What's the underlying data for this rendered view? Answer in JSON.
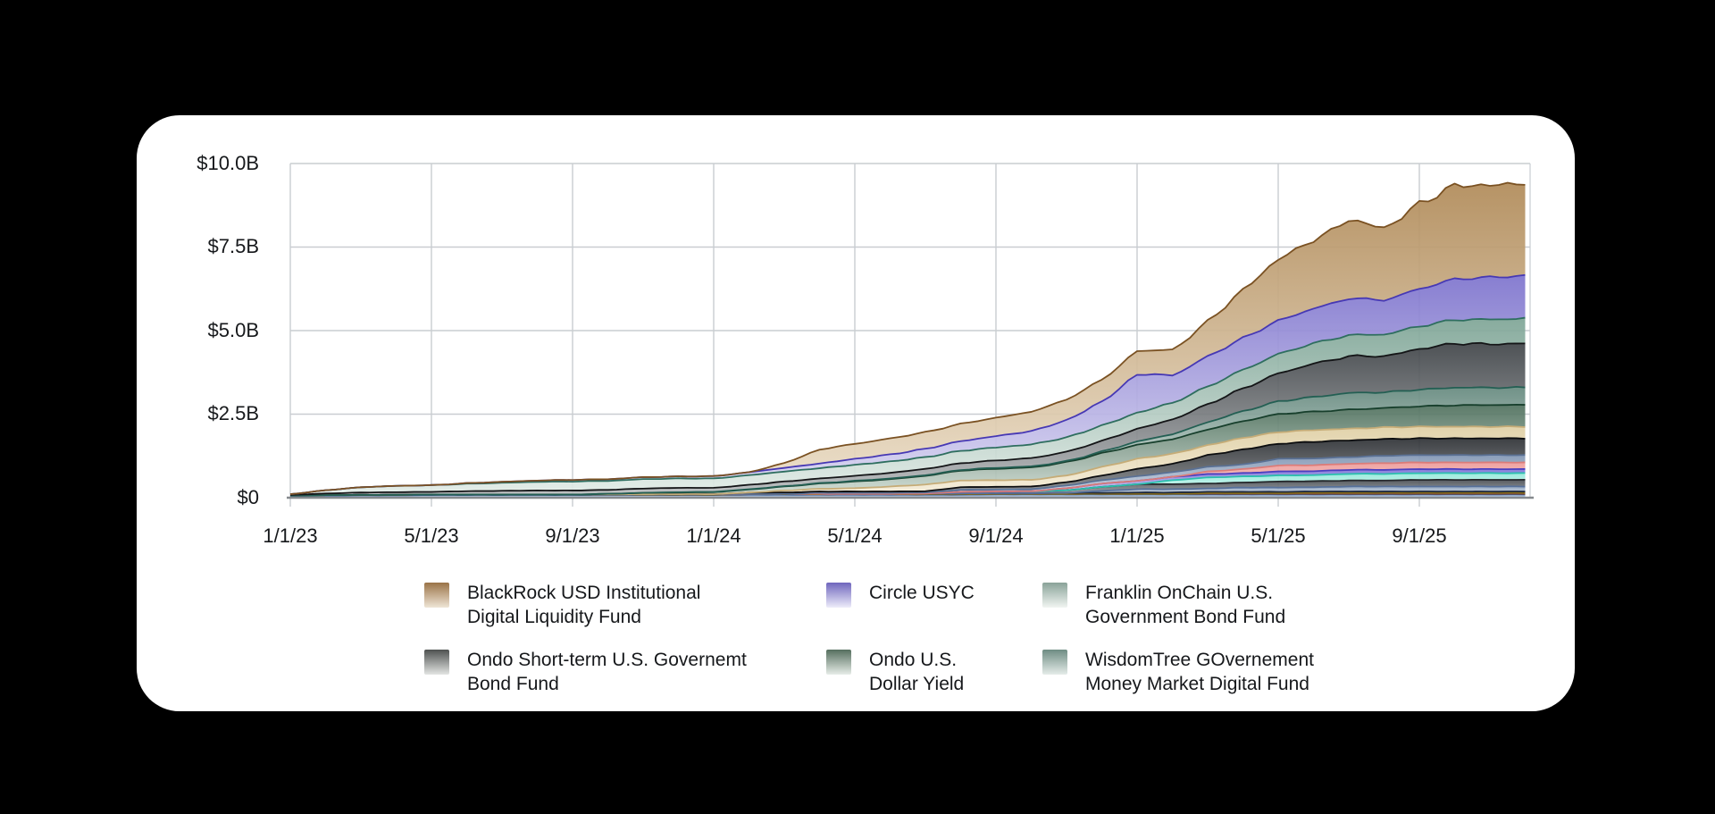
{
  "page": {
    "background": "#000000",
    "card_background": "#ffffff"
  },
  "chart_data": {
    "type": "area",
    "stacked": true,
    "title": "",
    "xlabel": "",
    "ylabel": "",
    "ylim": [
      0,
      10
    ],
    "grid": true,
    "y_ticks": [
      "$10.0B",
      "$7.5B",
      "$5.0B",
      "$2.5B",
      "$0"
    ],
    "y_tick_values": [
      10,
      7.5,
      5,
      2.5,
      0
    ],
    "x_ticks": [
      "1/1/23",
      "5/1/23",
      "9/1/23",
      "1/1/24",
      "5/1/24",
      "9/1/24",
      "1/1/25",
      "5/1/25",
      "9/1/25"
    ],
    "x_months_start": "2023-01",
    "x_months_count": 36,
    "unit": "$ billions",
    "series": [
      {
        "name": "unlabeled-blue-base",
        "stroke": "#3d5f91",
        "fill_top": "#7b9cc8",
        "fill_bottom": "#c5d5e8",
        "values": [
          0.05,
          0.06,
          0.07,
          0.07,
          0.08,
          0.08,
          0.08,
          0.08,
          0.08,
          0.08,
          0.08,
          0.08,
          0.08,
          0.09,
          0.09,
          0.09,
          0.09,
          0.09,
          0.09,
          0.09,
          0.1,
          0.1,
          0.1,
          0.1,
          0.1,
          0.1,
          0.1,
          0.1,
          0.1,
          0.1,
          0.1,
          0.1,
          0.1,
          0.1,
          0.1,
          0.1
        ]
      },
      {
        "name": "unlabeled-maroon",
        "stroke": "#6e4040",
        "fill_top": "#96625f",
        "fill_bottom": "#d8c0bd",
        "values": [
          0.015,
          0.015,
          0.015,
          0.015,
          0.015,
          0.015,
          0.015,
          0.015,
          0.015,
          0.015,
          0.015,
          0.015,
          0.015,
          0.015,
          0.015,
          0.015,
          0.015,
          0.015,
          0.015,
          0.015,
          0.015,
          0.015,
          0.015,
          0.015,
          0.015,
          0.015,
          0.015,
          0.015,
          0.015,
          0.015,
          0.015,
          0.015,
          0.015,
          0.015,
          0.015,
          0.015
        ]
      },
      {
        "name": "unlabeled-gold",
        "stroke": "#8a6d14",
        "fill_top": "#b08c2a",
        "fill_bottom": "#e6d49a",
        "values": [
          0,
          0,
          0,
          0,
          0,
          0,
          0,
          0,
          0,
          0,
          0,
          0,
          0,
          0,
          0,
          0,
          0,
          0,
          0,
          0,
          0,
          0,
          0,
          0,
          0,
          0,
          0.02,
          0.02,
          0.02,
          0.03,
          0.03,
          0.03,
          0.03,
          0.03,
          0.03,
          0.03
        ]
      },
      {
        "name": "unlabeled-navy",
        "stroke": "#1f2a3d",
        "fill_top": "#39485f",
        "fill_bottom": "#9aa5b5",
        "values": [
          0,
          0,
          0,
          0,
          0,
          0,
          0,
          0,
          0,
          0,
          0.01,
          0.01,
          0.01,
          0.01,
          0.01,
          0.01,
          0.01,
          0.01,
          0.02,
          0.02,
          0.02,
          0.02,
          0.03,
          0.03,
          0.04,
          0.04,
          0.04,
          0.04,
          0.04,
          0.04,
          0.04,
          0.04,
          0.04,
          0.04,
          0.04,
          0.04
        ]
      },
      {
        "name": "unlabeled-slate-blue",
        "stroke": "#56709a",
        "fill_top": "#8ba0bc",
        "fill_bottom": "#d4dce6",
        "values": [
          0,
          0,
          0,
          0,
          0,
          0,
          0,
          0,
          0,
          0,
          0,
          0,
          0,
          0,
          0,
          0,
          0,
          0,
          0,
          0,
          0,
          0,
          0,
          0.06,
          0.1,
          0.1,
          0.1,
          0.13,
          0.13,
          0.13,
          0.15,
          0.15,
          0.15,
          0.15,
          0.15,
          0.15
        ]
      },
      {
        "name": "unlabeled-charcoal",
        "stroke": "#25282c",
        "fill_top": "#474c52",
        "fill_bottom": "#a5a9ad",
        "values": [
          0,
          0,
          0,
          0,
          0,
          0,
          0,
          0,
          0,
          0,
          0,
          0,
          0,
          0,
          0,
          0,
          0,
          0,
          0,
          0.05,
          0.05,
          0.06,
          0.08,
          0.12,
          0.15,
          0.15,
          0.15,
          0.15,
          0.18,
          0.18,
          0.18,
          0.18,
          0.2,
          0.2,
          0.2,
          0.2
        ]
      },
      {
        "name": "unlabeled-mint",
        "stroke": "#2bbfae",
        "fill_top": "#93e9d9",
        "fill_bottom": "#e2faf6",
        "values": [
          0,
          0,
          0,
          0,
          0,
          0,
          0,
          0,
          0,
          0,
          0,
          0,
          0,
          0,
          0,
          0,
          0,
          0,
          0,
          0,
          0,
          0,
          0,
          0,
          0,
          0.12,
          0.18,
          0.18,
          0.18,
          0.18,
          0.2,
          0.2,
          0.2,
          0.2,
          0.2,
          0.2
        ]
      },
      {
        "name": "unlabeled-violet",
        "stroke": "#4a3ec0",
        "fill_top": "#7e72d8",
        "fill_bottom": "#d5d1f0",
        "values": [
          0,
          0,
          0,
          0,
          0,
          0,
          0,
          0,
          0,
          0,
          0,
          0,
          0,
          0,
          0,
          0,
          0,
          0,
          0,
          0,
          0,
          0,
          0.06,
          0.1,
          0.1,
          0.1,
          0.1,
          0.1,
          0.12,
          0.12,
          0.12,
          0.12,
          0.12,
          0.12,
          0.12,
          0.12
        ]
      },
      {
        "name": "unlabeled-salmon",
        "stroke": "#da7c79",
        "fill_top": "#ee9a98",
        "fill_bottom": "#f8d6d4",
        "values": [
          0,
          0,
          0,
          0,
          0,
          0,
          0,
          0,
          0,
          0,
          0,
          0,
          0,
          0,
          0,
          0,
          0,
          0,
          0,
          0,
          0,
          0,
          0,
          0,
          0,
          0,
          0.08,
          0.12,
          0.18,
          0.18,
          0.18,
          0.2,
          0.2,
          0.2,
          0.2,
          0.2
        ]
      },
      {
        "name": "unlabeled-blue-gray",
        "stroke": "#5a7195",
        "fill_top": "#8095b3",
        "fill_bottom": "#ccd6e3",
        "values": [
          0,
          0,
          0,
          0,
          0,
          0,
          0,
          0,
          0,
          0,
          0,
          0,
          0,
          0,
          0,
          0.03,
          0.03,
          0.03,
          0.03,
          0.06,
          0.06,
          0.06,
          0.08,
          0.1,
          0.14,
          0.14,
          0.14,
          0.14,
          0.2,
          0.2,
          0.2,
          0.22,
          0.22,
          0.22,
          0.22,
          0.22
        ]
      },
      {
        "name": "unlabeled-black",
        "stroke": "#0c0d0f",
        "fill_top": "#2c2f33",
        "fill_bottom": "#8d9093",
        "values": [
          0,
          0,
          0,
          0,
          0,
          0,
          0,
          0,
          0,
          0,
          0,
          0,
          0,
          0.04,
          0.04,
          0.04,
          0.04,
          0.04,
          0.04,
          0.08,
          0.08,
          0.08,
          0.1,
          0.14,
          0.22,
          0.25,
          0.35,
          0.45,
          0.45,
          0.5,
          0.5,
          0.5,
          0.5,
          0.5,
          0.5,
          0.5
        ]
      },
      {
        "name": "unlabeled-cream",
        "stroke": "#c6ac77",
        "fill_top": "#dfcfa4",
        "fill_bottom": "#f4ecd8",
        "values": [
          0,
          0,
          0,
          0,
          0,
          0,
          0,
          0,
          0,
          0,
          0,
          0,
          0,
          0,
          0.06,
          0.08,
          0.1,
          0.15,
          0.2,
          0.2,
          0.2,
          0.2,
          0.2,
          0.26,
          0.3,
          0.3,
          0.3,
          0.35,
          0.35,
          0.35,
          0.35,
          0.35,
          0.35,
          0.35,
          0.35,
          0.35
        ]
      },
      {
        "name": "Ondo U.S. Dollar Yield",
        "stroke": "#173f2c",
        "fill_top": "#4e6f5c",
        "fill_bottom": "#cfdcd3",
        "values": [
          0,
          0,
          0,
          0,
          0,
          0,
          0,
          0,
          0,
          0.02,
          0.04,
          0.05,
          0.06,
          0.09,
          0.12,
          0.16,
          0.2,
          0.22,
          0.26,
          0.3,
          0.34,
          0.37,
          0.4,
          0.41,
          0.42,
          0.44,
          0.47,
          0.5,
          0.54,
          0.55,
          0.57,
          0.58,
          0.61,
          0.64,
          0.65,
          0.65
        ]
      },
      {
        "name": "WisdomTree GOvernement Money Market Digital Fund",
        "stroke": "#235f53",
        "fill_top": "#64887d",
        "fill_bottom": "#dfe8e4",
        "values": [
          0,
          0,
          0,
          0,
          0,
          0,
          0,
          0,
          0,
          0,
          0,
          0.01,
          0.01,
          0.01,
          0.01,
          0.01,
          0.02,
          0.02,
          0.02,
          0.02,
          0.03,
          0.03,
          0.03,
          0.05,
          0.1,
          0.15,
          0.22,
          0.3,
          0.38,
          0.44,
          0.5,
          0.47,
          0.5,
          0.53,
          0.52,
          0.52
        ]
      },
      {
        "name": "Ondo Short-term U.S. Governemt Bond Fund",
        "stroke": "#141517",
        "fill_top": "#3f4347",
        "fill_bottom": "#b9bcbe",
        "values": [
          0.02,
          0.05,
          0.07,
          0.08,
          0.08,
          0.1,
          0.11,
          0.12,
          0.12,
          0.12,
          0.13,
          0.13,
          0.12,
          0.13,
          0.14,
          0.14,
          0.15,
          0.17,
          0.19,
          0.2,
          0.22,
          0.25,
          0.28,
          0.32,
          0.38,
          0.44,
          0.54,
          0.68,
          0.84,
          1.0,
          1.1,
          1.08,
          1.22,
          1.32,
          1.3,
          1.32
        ]
      },
      {
        "name": "Franklin OnChain U.S. Government Bond Fund",
        "stroke": "#2e6e5f",
        "fill_top": "#7da495",
        "fill_bottom": "#e2ece7",
        "values": [
          0.02,
          0.1,
          0.16,
          0.19,
          0.2,
          0.22,
          0.24,
          0.26,
          0.27,
          0.27,
          0.28,
          0.28,
          0.28,
          0.29,
          0.3,
          0.31,
          0.33,
          0.34,
          0.35,
          0.37,
          0.39,
          0.41,
          0.43,
          0.46,
          0.48,
          0.5,
          0.53,
          0.56,
          0.58,
          0.61,
          0.63,
          0.65,
          0.68,
          0.71,
          0.74,
          0.75
        ]
      },
      {
        "name": "Circle USYC",
        "stroke": "#4638b4",
        "fill_top": "#7d73cd",
        "fill_bottom": "#dcd9f2",
        "values": [
          0,
          0,
          0,
          0,
          0,
          0.02,
          0.03,
          0.04,
          0.05,
          0.05,
          0.06,
          0.06,
          0.07,
          0.09,
          0.11,
          0.14,
          0.18,
          0.21,
          0.25,
          0.29,
          0.34,
          0.4,
          0.52,
          0.72,
          1.15,
          0.82,
          0.9,
          0.95,
          1.0,
          1.04,
          1.1,
          1.03,
          1.12,
          1.22,
          1.26,
          1.28
        ]
      },
      {
        "name": "BlackRock USD Institutional Digital Liquidity Fund",
        "stroke": "#7a5122",
        "fill_top": "#b08a58",
        "fill_bottom": "#ecdfc9",
        "values": [
          0,
          0,
          0,
          0,
          0,
          0,
          0,
          0,
          0,
          0,
          0,
          0,
          0,
          0,
          0.15,
          0.42,
          0.45,
          0.48,
          0.5,
          0.52,
          0.55,
          0.58,
          0.62,
          0.66,
          0.7,
          0.76,
          1.05,
          1.45,
          1.85,
          2.05,
          2.35,
          2.15,
          2.55,
          2.8,
          2.75,
          2.78
        ]
      }
    ],
    "grid_color": "#c9cdd1",
    "axis_color": "#85898d"
  },
  "legend": {
    "items": [
      {
        "line1": "BlackRock USD Institutional",
        "line2": "Digital Liquidity Fund",
        "swatch_from": "#9a7347",
        "swatch_to": "#efe5d6"
      },
      {
        "line1": "Circle USYC",
        "line2": "",
        "swatch_from": "#6f66bd",
        "swatch_to": "#edecfa"
      },
      {
        "line1": "Franklin OnChain U.S.",
        "line2": "Government Bond Fund",
        "swatch_from": "#8aa399",
        "swatch_to": "#f1f5f2"
      },
      {
        "line1": "Ondo Short-term U.S. Governemt",
        "line2": "Bond Fund",
        "swatch_from": "#4e5150",
        "swatch_to": "#e3e5e3"
      },
      {
        "line1": "Ondo U.S.",
        "line2": "Dollar Yield",
        "swatch_from": "#556e5e",
        "swatch_to": "#e7ede8"
      },
      {
        "line1": "WisdomTree GOvernement",
        "line2": "Money Market Digital Fund",
        "swatch_from": "#6e8c83",
        "swatch_to": "#e5ece9"
      }
    ]
  }
}
